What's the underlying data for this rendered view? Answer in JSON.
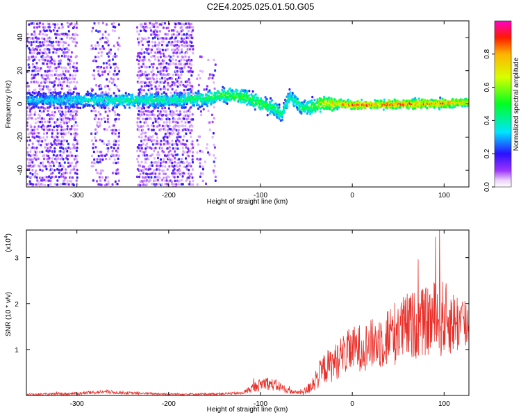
{
  "title": "C2E4.2025.025.01.50.G05",
  "colors": {
    "snr_line": "#e8302a",
    "axes": "#000000",
    "background": "#ffffff"
  },
  "chart_data": [
    {
      "type": "heatmap",
      "name": "spectrogram",
      "xlabel": "Height of straight line (km)",
      "ylabel": "Frequency (Hz)",
      "xlim": [
        -355,
        127
      ],
      "ylim": [
        -50,
        50
      ],
      "xticks": [
        -300,
        -200,
        -100,
        0,
        100
      ],
      "yticks": [
        -40,
        -20,
        0,
        20,
        40
      ],
      "xtick_labels": [
        "-300",
        "-200",
        "-100",
        "0",
        "100"
      ],
      "ytick_labels": [
        "-40",
        "-20",
        "0",
        "20",
        "40"
      ],
      "colorbar": {
        "label": "Normalized spectral amplitude",
        "range": [
          0,
          1
        ],
        "ticks": [
          0.0,
          0.2,
          0.4,
          0.6,
          0.8
        ],
        "tick_labels": [
          "0.0",
          "0.2",
          "0.4",
          "0.6",
          "0.8"
        ],
        "colormap": "rainbow (magenta-blue-cyan-green-yellow-red)"
      },
      "ridge": {
        "description": "Main frequency trace (approximate centre frequency vs height)",
        "x": [
          -345,
          -300,
          -250,
          -200,
          -160,
          -140,
          -120,
          -100,
          -85,
          -78,
          -70,
          -62,
          -55,
          -45,
          -35,
          -20,
          0,
          50,
          100,
          127
        ],
        "freq": [
          3,
          3,
          3,
          3,
          4,
          6,
          5,
          1,
          -2,
          -6,
          5,
          2,
          -2,
          -1,
          1,
          1,
          0,
          0.5,
          1,
          2
        ],
        "amplitude": [
          0.35,
          0.4,
          0.45,
          0.45,
          0.5,
          0.55,
          0.55,
          0.55,
          0.5,
          0.45,
          0.45,
          0.45,
          0.5,
          0.55,
          0.7,
          0.8,
          0.9,
          0.9,
          0.85,
          0.75
        ]
      },
      "scatter_bands": [
        {
          "x_range": [
            -355,
            -300
          ],
          "freq_range": [
            -50,
            50
          ],
          "density": "high"
        },
        {
          "x_range": [
            -285,
            -255
          ],
          "freq_range": [
            -50,
            50
          ],
          "density": "medium"
        },
        {
          "x_range": [
            -235,
            -175
          ],
          "freq_range": [
            -50,
            50
          ],
          "density": "high"
        },
        {
          "x_range": [
            -170,
            -150
          ],
          "freq_range": [
            -50,
            30
          ],
          "density": "low"
        }
      ]
    },
    {
      "type": "line",
      "name": "snr",
      "xlabel": "Height of straight line (km)",
      "ylabel": "SNR (10 * v/v)",
      "scale_label": "(x10",
      "scale_exponent": "4",
      "xlim": [
        -355,
        127
      ],
      "ylim": [
        0,
        3.6
      ],
      "xticks": [
        -300,
        -200,
        -100,
        0,
        100
      ],
      "yticks": [
        1,
        2,
        3
      ],
      "xtick_labels": [
        "-300",
        "-200",
        "-100",
        "0",
        "100"
      ],
      "ytick_labels": [
        "1",
        "2",
        "3"
      ],
      "envelope": {
        "description": "Approximate mean and noise amplitude of the SNR trace (x10^4)",
        "x": [
          -355,
          -300,
          -270,
          -240,
          -200,
          -160,
          -120,
          -105,
          -95,
          -80,
          -70,
          -60,
          -50,
          -40,
          -30,
          -20,
          -10,
          0,
          20,
          40,
          60,
          80,
          95,
          110,
          127
        ],
        "mean": [
          0.02,
          0.04,
          0.08,
          0.05,
          0.03,
          0.03,
          0.05,
          0.2,
          0.28,
          0.2,
          0.1,
          0.06,
          0.1,
          0.35,
          0.6,
          0.7,
          0.9,
          1.0,
          1.1,
          1.3,
          1.5,
          1.6,
          1.7,
          1.6,
          1.55
        ],
        "noise": [
          0.02,
          0.03,
          0.04,
          0.03,
          0.02,
          0.02,
          0.03,
          0.12,
          0.15,
          0.12,
          0.06,
          0.04,
          0.1,
          0.25,
          0.35,
          0.4,
          0.45,
          0.5,
          0.55,
          0.7,
          0.75,
          0.75,
          0.9,
          0.7,
          0.65
        ]
      },
      "peak": {
        "x": 95,
        "y": 3.6
      }
    }
  ]
}
